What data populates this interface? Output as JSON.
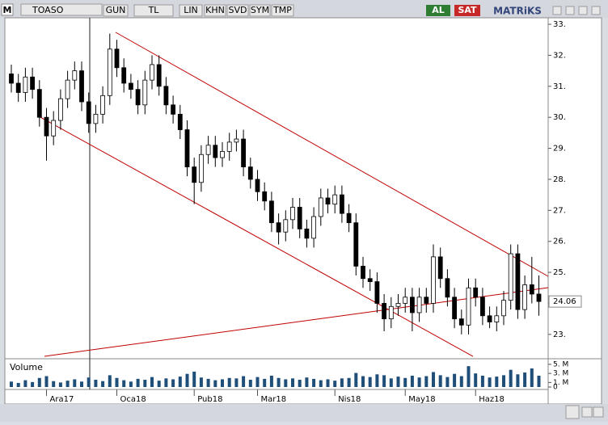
{
  "toolbar": {
    "logo": "M",
    "symbol": "TOASO",
    "buttons": [
      "GUN",
      "TL",
      "LIN",
      "KHN",
      "SVD",
      "SYM",
      "TMP"
    ],
    "buy": "AL",
    "sell": "SAT",
    "brand": "MATRiKS"
  },
  "chart_data": {
    "type": "candlestick",
    "categories": [
      null,
      null,
      null,
      null,
      null,
      "Ara17",
      null,
      null,
      null,
      null,
      null,
      null,
      null,
      null,
      null,
      "Oca18",
      null,
      null,
      null,
      null,
      null,
      null,
      null,
      null,
      null,
      null,
      "Pub18",
      null,
      null,
      null,
      null,
      null,
      null,
      null,
      null,
      "Mar18",
      null,
      null,
      null,
      null,
      null,
      null,
      null,
      null,
      null,
      null,
      "Nis18",
      null,
      null,
      null,
      null,
      null,
      null,
      null,
      null,
      null,
      "May18",
      null,
      null,
      null,
      null,
      null,
      null,
      null,
      null,
      null,
      "Haz18",
      null,
      null,
      null,
      null,
      null,
      null,
      null,
      null,
      null
    ],
    "open": [
      31.4,
      31.1,
      30.8,
      31.3,
      30.9,
      30.0,
      29.4,
      29.9,
      30.6,
      31.2,
      31.5,
      30.5,
      29.8,
      30.1,
      30.7,
      32.2,
      31.6,
      31.1,
      30.9,
      30.4,
      31.2,
      31.7,
      31.0,
      30.4,
      30.1,
      29.6,
      28.4,
      27.9,
      28.8,
      29.1,
      28.7,
      28.9,
      29.2,
      29.3,
      28.4,
      28.0,
      27.6,
      27.3,
      26.6,
      26.3,
      26.7,
      27.1,
      26.4,
      26.1,
      26.8,
      27.4,
      27.2,
      27.5,
      26.9,
      26.6,
      25.2,
      24.8,
      24.7,
      24.0,
      23.5,
      23.9,
      24.0,
      24.2,
      23.7,
      24.2,
      24.0,
      25.5,
      24.8,
      24.2,
      23.5,
      23.3,
      24.5,
      24.2,
      23.6,
      23.4,
      23.6,
      24.1,
      25.6,
      23.8,
      24.6,
      24.3
    ],
    "high": [
      31.7,
      31.4,
      31.6,
      31.6,
      31.2,
      30.3,
      30.2,
      30.9,
      31.5,
      31.8,
      31.8,
      30.8,
      30.4,
      31.0,
      32.7,
      32.5,
      31.9,
      31.4,
      31.2,
      31.5,
      32.0,
      32.0,
      31.3,
      30.7,
      30.4,
      29.9,
      28.7,
      29.1,
      29.4,
      29.4,
      29.2,
      29.5,
      29.6,
      29.6,
      28.7,
      28.3,
      27.9,
      27.6,
      26.9,
      27.0,
      27.4,
      27.4,
      26.7,
      27.1,
      27.7,
      27.7,
      27.8,
      27.8,
      27.2,
      26.9,
      25.5,
      25.1,
      25.0,
      24.3,
      24.2,
      24.3,
      24.5,
      24.5,
      24.5,
      24.5,
      25.9,
      25.8,
      25.1,
      24.5,
      23.8,
      24.8,
      24.8,
      24.5,
      23.9,
      23.9,
      24.4,
      25.9,
      25.9,
      24.9,
      25.5,
      24.9
    ],
    "low": [
      30.8,
      30.5,
      30.5,
      30.6,
      29.7,
      28.6,
      29.1,
      29.6,
      30.3,
      30.9,
      30.2,
      29.5,
      29.5,
      29.8,
      30.4,
      31.3,
      30.8,
      30.6,
      30.1,
      30.1,
      30.9,
      30.7,
      30.1,
      29.8,
      29.3,
      28.1,
      27.2,
      27.6,
      28.5,
      28.4,
      28.4,
      28.6,
      28.9,
      28.1,
      27.7,
      27.3,
      27.0,
      26.3,
      25.9,
      26.0,
      26.4,
      26.1,
      25.8,
      25.8,
      26.5,
      26.9,
      26.9,
      26.6,
      26.3,
      24.9,
      24.5,
      24.4,
      23.7,
      23.1,
      23.2,
      23.6,
      23.7,
      23.1,
      23.4,
      23.7,
      23.7,
      24.5,
      23.9,
      23.2,
      23.0,
      23.0,
      23.9,
      23.3,
      23.2,
      23.1,
      23.3,
      23.8,
      23.5,
      23.5,
      24.0,
      23.6
    ],
    "close": [
      31.1,
      30.8,
      31.3,
      30.9,
      30.0,
      29.4,
      29.9,
      30.6,
      31.2,
      31.5,
      30.5,
      29.8,
      30.1,
      30.7,
      32.2,
      31.6,
      31.1,
      30.9,
      30.4,
      31.2,
      31.7,
      31.0,
      30.4,
      30.1,
      29.6,
      28.4,
      27.9,
      28.8,
      29.1,
      28.7,
      28.9,
      29.2,
      29.3,
      28.4,
      28.0,
      27.6,
      27.3,
      26.6,
      26.3,
      26.7,
      27.1,
      26.4,
      26.1,
      26.8,
      27.4,
      27.2,
      27.5,
      26.9,
      26.6,
      25.2,
      24.8,
      24.7,
      24.0,
      23.5,
      23.9,
      24.0,
      24.2,
      23.7,
      24.2,
      24.0,
      25.5,
      24.8,
      24.2,
      23.5,
      23.3,
      24.5,
      24.2,
      23.6,
      23.4,
      23.6,
      24.1,
      25.6,
      23.8,
      24.6,
      24.3,
      24.06
    ],
    "ylim": [
      22.24,
      33.21
    ],
    "yticks": [
      {
        "value": 23,
        "label": "23."
      },
      {
        "value": 24,
        "label": "24."
      },
      {
        "value": 25,
        "label": "25."
      },
      {
        "value": 26,
        "label": "26."
      },
      {
        "value": 27,
        "label": "27."
      },
      {
        "value": 28,
        "label": "28."
      },
      {
        "value": 29,
        "label": "29."
      },
      {
        "value": 30,
        "label": "30."
      },
      {
        "value": 31,
        "label": "31."
      },
      {
        "value": 32,
        "label": "32."
      },
      {
        "value": 33,
        "label": "33."
      }
    ],
    "up_color": "#ffffff",
    "down_color": "#000000",
    "volume_title": "Volume",
    "volume": [
      1.2,
      0.9,
      1.5,
      1.1,
      2.0,
      2.4,
      1.3,
      1.0,
      1.4,
      1.7,
      1.2,
      2.1,
      1.6,
      1.3,
      2.6,
      2.0,
      1.5,
      1.2,
      1.8,
      1.6,
      2.2,
      1.4,
      1.9,
      1.7,
      2.3,
      2.9,
      3.4,
      2.1,
      1.8,
      1.5,
      1.7,
      2.0,
      1.9,
      2.4,
      1.6,
      2.2,
      1.8,
      2.5,
      2.0,
      1.7,
      1.9,
      1.6,
      2.1,
      1.8,
      1.5,
      1.7,
      1.4,
      1.9,
      2.0,
      3.1,
      2.4,
      2.2,
      2.8,
      2.6,
      1.9,
      2.3,
      2.0,
      2.5,
      2.1,
      2.4,
      3.3,
      2.6,
      2.2,
      2.9,
      2.4,
      4.6,
      3.0,
      2.5,
      2.1,
      2.3,
      2.6,
      3.8,
      2.8,
      3.2,
      4.1,
      2.5
    ],
    "volume_color": "#1f4e79",
    "volume_ylim": [
      0,
      5.7
    ],
    "volume_yticks": [
      {
        "value": 5,
        "label": "5. M"
      },
      {
        "value": 3,
        "label": "3. M"
      },
      {
        "value": 1,
        "label": "1. M"
      },
      0
    ]
  }
}
